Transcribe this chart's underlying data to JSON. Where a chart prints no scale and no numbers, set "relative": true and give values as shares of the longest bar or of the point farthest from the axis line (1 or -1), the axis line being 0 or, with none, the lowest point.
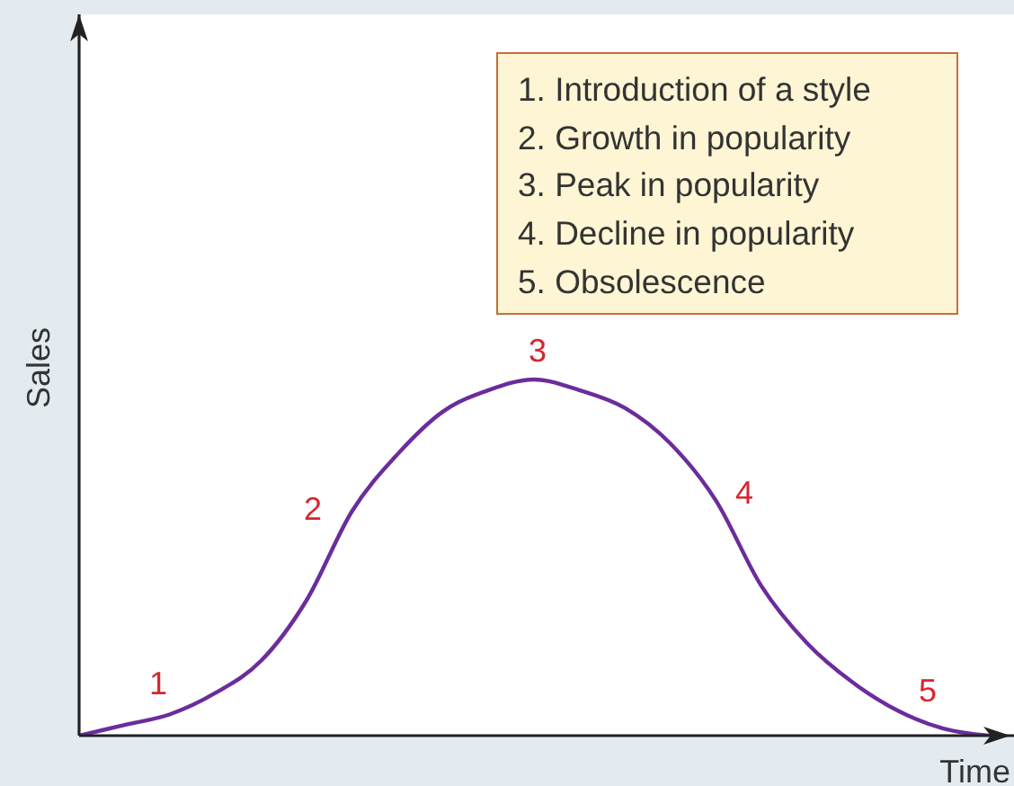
{
  "chart_data": {
    "type": "line",
    "relative": true,
    "xlabel": "Time",
    "ylabel": "Sales",
    "categories": [
      null,
      null,
      null,
      null,
      null,
      null,
      null,
      null,
      null,
      null,
      null,
      null,
      null,
      null,
      null,
      null,
      null,
      null,
      null,
      null,
      null
    ],
    "series": [
      {
        "color": "#6b2c9c",
        "values": [
          0,
          0.03,
          0.06,
          0.12,
          0.21,
          0.38,
          0.63,
          0.79,
          0.91,
          0.97,
          1,
          0.97,
          0.92,
          0.82,
          0.66,
          0.42,
          0.26,
          0.15,
          0.07,
          0.02,
          0
        ]
      }
    ],
    "marker": "none",
    "line_style": "solid",
    "annotations": [
      "1. Introduction of a style",
      "2. Growth in popularity",
      "3. Peak in popularity",
      "4. Decline in popularity",
      "5. Obsolescence",
      "1",
      "2",
      "3",
      "4",
      "5"
    ]
  }
}
